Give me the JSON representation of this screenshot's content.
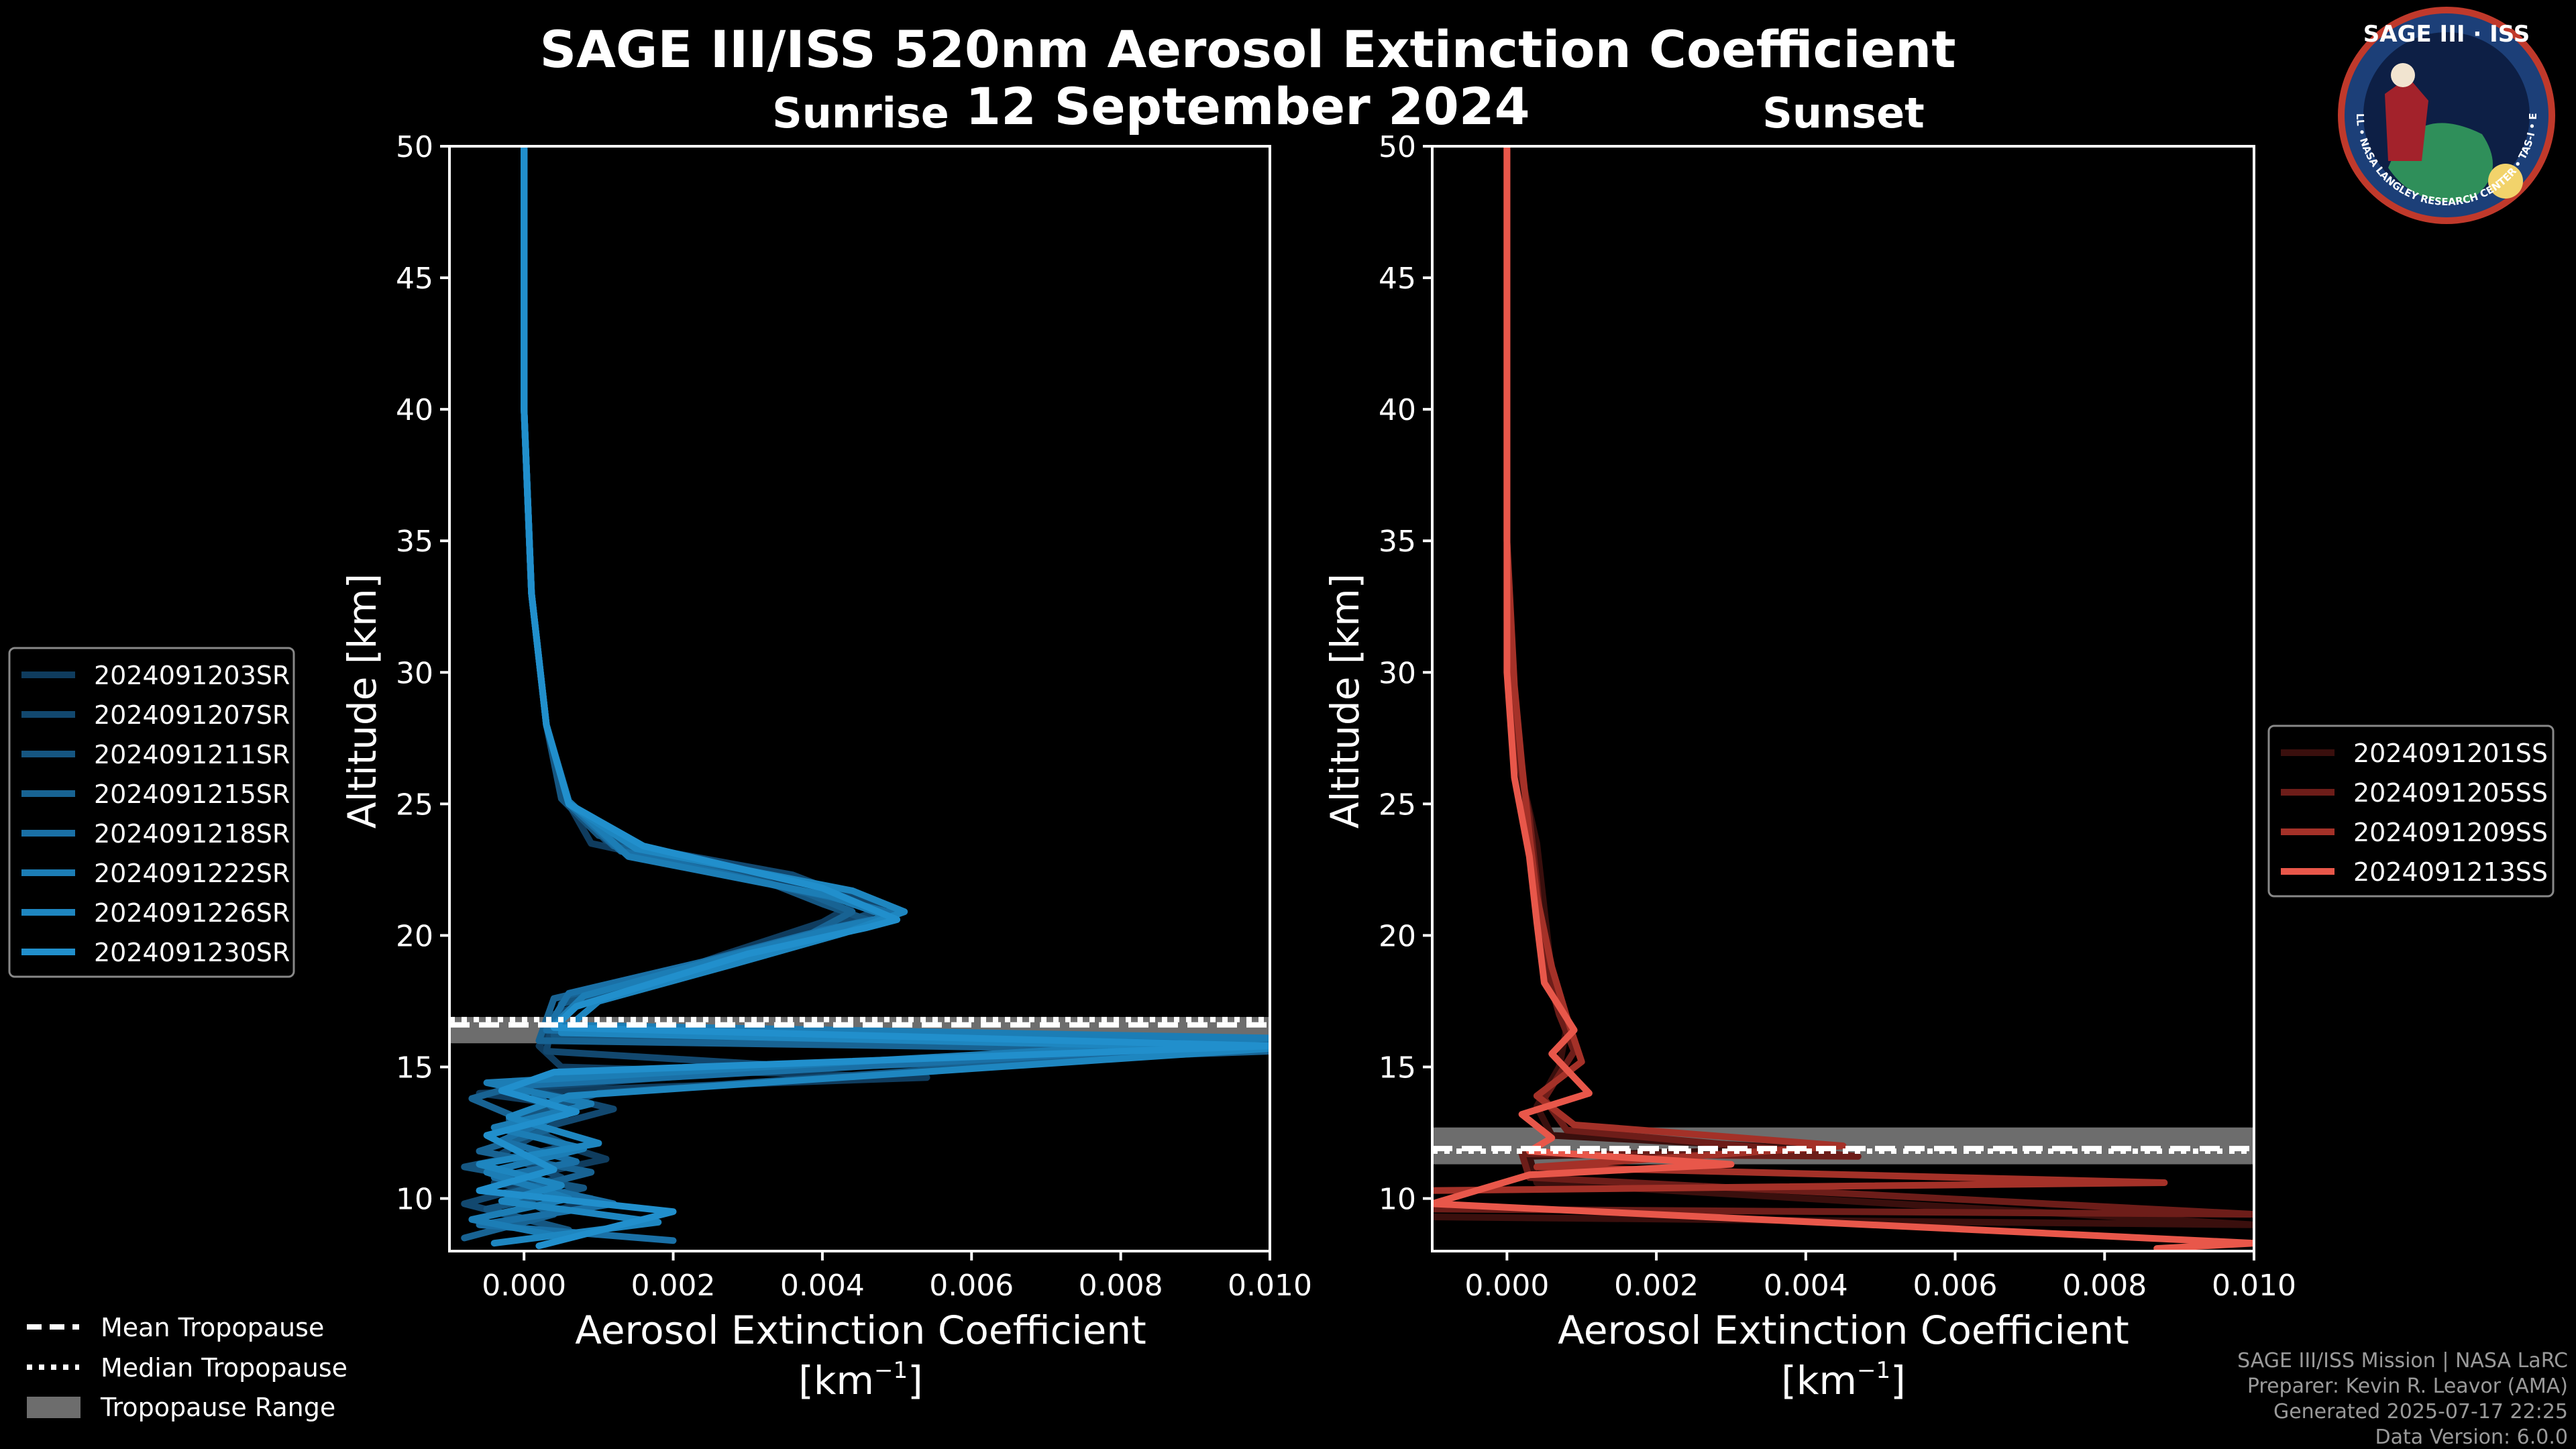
{
  "title": "SAGE III/ISS 520nm Aerosol Extinction Coefficient",
  "date": "12 September 2024",
  "logo": {
    "text": "SAGE III · ISS",
    "ring_text": "BALL • NASA LANGLEY RESEARCH CENTER • TAS-I • ESA"
  },
  "legend_tropopause": [
    "Mean Tropopause",
    "Median Tropopause",
    "Tropopause Range"
  ],
  "credits": [
    "SAGE III/ISS Mission | NASA LaRC",
    "Preparer: Kevin R. Leavor (AMA)",
    "Generated 2025-07-17 22:25",
    "Data Version: 6.0.0"
  ],
  "colors": {
    "sunrise": "#1f8ac6",
    "sunset": "#e8574a",
    "background": "#000000",
    "tropopause_band": "#808080"
  },
  "chart_data": [
    {
      "type": "line",
      "panel": "sunrise",
      "title": "Sunrise",
      "xlabel": "Aerosol Extinction Coefficient",
      "xunit": "[km",
      "xunit_sup": "−1",
      "xunit_end": "]",
      "ylabel": "Altitude [km]",
      "xlim": [
        -0.001,
        0.01
      ],
      "ylim": [
        8,
        50
      ],
      "xticks": [
        "0.000",
        "0.002",
        "0.004",
        "0.006",
        "0.008",
        "0.010"
      ],
      "yticks": [
        "10",
        "15",
        "20",
        "25",
        "30",
        "35",
        "40",
        "45",
        "50"
      ],
      "tropopause": {
        "mean": 16.6,
        "median": 16.8,
        "range": [
          15.9,
          16.9
        ]
      },
      "series": [
        {
          "name": "2024091203SR",
          "color": "#0f3c5e",
          "points": [
            [
              0.0001,
              9.2
            ],
            [
              0.0009,
              10.0
            ],
            [
              -0.0004,
              10.6
            ],
            [
              0.0011,
              11.5
            ],
            [
              0.0002,
              12.3
            ],
            [
              0.0007,
              13.5
            ],
            [
              -0.0006,
              14.0
            ],
            [
              0.0054,
              14.6
            ],
            [
              0.0005,
              15.0
            ],
            [
              0.0002,
              15.8
            ],
            [
              0.0006,
              17.2
            ],
            [
              0.0014,
              18.0
            ],
            [
              0.0026,
              19.2
            ],
            [
              0.004,
              20.5
            ],
            [
              0.0045,
              21.3
            ],
            [
              0.003,
              22.2
            ],
            [
              0.0009,
              23.5
            ],
            [
              0.0006,
              25.0
            ],
            [
              0.0003,
              28.0
            ],
            [
              0.0001,
              33.0
            ],
            [
              0.0,
              40.0
            ],
            [
              0.0,
              50.0
            ]
          ]
        },
        {
          "name": "2024091207SR",
          "color": "#12486f",
          "points": [
            [
              0.0003,
              9.0
            ],
            [
              -0.0008,
              9.8
            ],
            [
              0.0005,
              10.8
            ],
            [
              -0.0003,
              11.7
            ],
            [
              0.0004,
              12.8
            ],
            [
              0.0012,
              13.4
            ],
            [
              0.0,
              14.2
            ],
            [
              0.0038,
              15.0
            ],
            [
              0.0003,
              15.6
            ],
            [
              0.0004,
              17.0
            ],
            [
              0.0017,
              18.3
            ],
            [
              0.0032,
              19.5
            ],
            [
              0.0042,
              20.4
            ],
            [
              0.0048,
              21.0
            ],
            [
              0.0036,
              22.3
            ],
            [
              0.0011,
              23.6
            ],
            [
              0.0006,
              25.0
            ],
            [
              0.0003,
              28.0
            ],
            [
              0.0001,
              33.0
            ],
            [
              0.0,
              40.0
            ],
            [
              0.0,
              50.0
            ]
          ]
        },
        {
          "name": "2024091211SR",
          "color": "#155681",
          "points": [
            [
              0.0006,
              8.8
            ],
            [
              -0.0005,
              9.6
            ],
            [
              0.0008,
              10.4
            ],
            [
              -0.0008,
              11.2
            ],
            [
              0.0006,
              12.0
            ],
            [
              -0.0002,
              13.0
            ],
            [
              0.001,
              14.0
            ],
            [
              0.01,
              15.8
            ],
            [
              0.0004,
              16.2
            ],
            [
              0.0005,
              17.4
            ],
            [
              0.002,
              18.6
            ],
            [
              0.0036,
              19.8
            ],
            [
              0.0046,
              20.6
            ],
            [
              0.004,
              21.2
            ],
            [
              0.0032,
              22.1
            ],
            [
              0.001,
              23.8
            ],
            [
              0.0005,
              25.2
            ],
            [
              0.0003,
              28.0
            ],
            [
              0.0001,
              33.0
            ],
            [
              0.0,
              40.0
            ],
            [
              0.0,
              50.0
            ]
          ]
        },
        {
          "name": "2024091215SR",
          "color": "#186393",
          "points": [
            [
              -0.0008,
              8.5
            ],
            [
              0.0004,
              9.4
            ],
            [
              -0.0002,
              10.2
            ],
            [
              0.0009,
              11.0
            ],
            [
              -0.0006,
              11.8
            ],
            [
              0.0003,
              12.6
            ],
            [
              -0.0007,
              13.8
            ],
            [
              0.0003,
              14.6
            ],
            [
              0.01,
              15.6
            ],
            [
              0.0002,
              16.0
            ],
            [
              0.0004,
              17.6
            ],
            [
              0.0022,
              18.8
            ],
            [
              0.0038,
              20.0
            ],
            [
              0.0044,
              20.9
            ],
            [
              0.0038,
              21.6
            ],
            [
              0.0012,
              23.4
            ],
            [
              0.0006,
              25.0
            ],
            [
              0.0003,
              28.0
            ],
            [
              0.0001,
              33.0
            ],
            [
              0.0,
              40.0
            ],
            [
              0.0,
              50.0
            ]
          ]
        },
        {
          "name": "2024091218SR",
          "color": "#1a70a6",
          "points": [
            [
              0.002,
              8.4
            ],
            [
              -0.0006,
              9.0
            ],
            [
              0.0012,
              9.8
            ],
            [
              -0.0004,
              10.8
            ],
            [
              0.0007,
              11.4
            ],
            [
              -0.0003,
              12.2
            ],
            [
              0.0005,
              13.2
            ],
            [
              0.0,
              14.3
            ],
            [
              0.01,
              15.9
            ],
            [
              0.0003,
              16.4
            ],
            [
              0.0006,
              17.8
            ],
            [
              0.0024,
              19.0
            ],
            [
              0.004,
              20.2
            ],
            [
              0.005,
              20.8
            ],
            [
              0.0042,
              21.4
            ],
            [
              0.0013,
              23.2
            ],
            [
              0.0006,
              25.0
            ],
            [
              0.0003,
              28.0
            ],
            [
              0.0001,
              33.0
            ],
            [
              0.0,
              40.0
            ],
            [
              0.0,
              50.0
            ]
          ]
        },
        {
          "name": "2024091222SR",
          "color": "#1c7db5",
          "points": [
            [
              0.0004,
              8.6
            ],
            [
              -0.0007,
              9.2
            ],
            [
              0.0006,
              10.0
            ],
            [
              -0.0005,
              11.0
            ],
            [
              0.0008,
              11.9
            ],
            [
              -0.0004,
              12.7
            ],
            [
              0.0009,
              13.6
            ],
            [
              -0.0005,
              14.4
            ],
            [
              0.01,
              16.1
            ],
            [
              0.0004,
              16.6
            ],
            [
              0.0008,
              17.7
            ],
            [
              0.0026,
              19.1
            ],
            [
              0.0042,
              20.3
            ],
            [
              0.0049,
              20.7
            ],
            [
              0.0041,
              21.5
            ],
            [
              0.0014,
              23.0
            ],
            [
              0.0006,
              25.1
            ],
            [
              0.0003,
              28.0
            ],
            [
              0.0001,
              33.0
            ],
            [
              0.0,
              40.0
            ],
            [
              0.0,
              50.0
            ]
          ]
        },
        {
          "name": "2024091226SR",
          "color": "#1e86c0",
          "points": [
            [
              -0.0004,
              8.3
            ],
            [
              0.0018,
              9.1
            ],
            [
              -0.0003,
              9.9
            ],
            [
              0.0005,
              10.5
            ],
            [
              -0.0006,
              11.3
            ],
            [
              0.001,
              12.1
            ],
            [
              -0.0002,
              13.1
            ],
            [
              0.0006,
              13.9
            ],
            [
              0.01,
              15.7
            ],
            [
              0.0005,
              16.3
            ],
            [
              0.001,
              17.5
            ],
            [
              0.0028,
              18.9
            ],
            [
              0.0043,
              20.1
            ],
            [
              0.0051,
              20.9
            ],
            [
              0.0044,
              21.7
            ],
            [
              0.0015,
              23.3
            ],
            [
              0.0006,
              25.0
            ],
            [
              0.0003,
              28.0
            ],
            [
              0.0001,
              33.0
            ],
            [
              0.0,
              40.0
            ],
            [
              0.0,
              50.0
            ]
          ]
        },
        {
          "name": "2024091230SR",
          "color": "#218fcc",
          "points": [
            [
              0.0002,
              8.2
            ],
            [
              0.002,
              9.5
            ],
            [
              -0.0006,
              10.3
            ],
            [
              0.0004,
              11.1
            ],
            [
              -0.0005,
              12.4
            ],
            [
              0.0007,
              13.3
            ],
            [
              -0.0003,
              14.1
            ],
            [
              0.0004,
              14.8
            ],
            [
              0.01,
              15.8
            ],
            [
              0.0004,
              16.5
            ],
            [
              0.0007,
              17.3
            ],
            [
              0.003,
              19.3
            ],
            [
              0.0046,
              20.3
            ],
            [
              0.005,
              20.6
            ],
            [
              0.004,
              21.8
            ],
            [
              0.0016,
              23.4
            ],
            [
              0.0006,
              25.0
            ],
            [
              0.0003,
              28.0
            ],
            [
              0.0001,
              33.0
            ],
            [
              0.0,
              40.0
            ],
            [
              0.0,
              50.0
            ]
          ]
        }
      ]
    },
    {
      "type": "line",
      "panel": "sunset",
      "title": "Sunset",
      "xlabel": "Aerosol Extinction Coefficient",
      "xunit": "[km",
      "xunit_sup": "−1",
      "xunit_end": "]",
      "ylabel": "Altitude [km]",
      "xlim": [
        -0.001,
        0.01
      ],
      "ylim": [
        8,
        50
      ],
      "xticks": [
        "0.000",
        "0.002",
        "0.004",
        "0.006",
        "0.008",
        "0.010"
      ],
      "yticks": [
        "10",
        "15",
        "20",
        "25",
        "30",
        "35",
        "40",
        "45",
        "50"
      ],
      "tropopause": {
        "mean": 11.9,
        "median": 11.8,
        "range": [
          11.3,
          12.7
        ]
      },
      "series": [
        {
          "name": "2024091201SS",
          "color": "#3a0f0d",
          "points": [
            [
              -0.001,
              9.3
            ],
            [
              0.01,
              9.0
            ],
            [
              0.0004,
              10.6
            ],
            [
              0.0003,
              11.6
            ],
            [
              0.004,
              11.9
            ],
            [
              0.0006,
              12.4
            ],
            [
              0.0004,
              13.5
            ],
            [
              0.0007,
              15.0
            ],
            [
              0.0008,
              16.5
            ],
            [
              0.0006,
              18.5
            ],
            [
              0.0005,
              21.0
            ],
            [
              0.0004,
              23.5
            ],
            [
              0.0002,
              26.0
            ],
            [
              0.0001,
              29.0
            ],
            [
              0.0,
              35.0
            ],
            [
              0.0,
              50.0
            ]
          ]
        },
        {
          "name": "2024091205SS",
          "color": "#6d1d19",
          "points": [
            [
              -0.001,
              9.6
            ],
            [
              0.01,
              9.4
            ],
            [
              0.0003,
              10.8
            ],
            [
              0.0002,
              11.7
            ],
            [
              0.0047,
              11.6
            ],
            [
              0.0008,
              12.6
            ],
            [
              0.0005,
              13.8
            ],
            [
              0.0009,
              15.6
            ],
            [
              0.0007,
              17.0
            ],
            [
              0.0005,
              19.0
            ],
            [
              0.0004,
              22.0
            ],
            [
              0.0003,
              24.5
            ],
            [
              0.0001,
              27.5
            ],
            [
              0.0,
              32.0
            ],
            [
              0.0,
              50.0
            ]
          ]
        },
        {
          "name": "2024091209SS",
          "color": "#a43128",
          "points": [
            [
              -0.001,
              10.3
            ],
            [
              0.0088,
              10.6
            ],
            [
              0.0004,
              11.2
            ],
            [
              0.0045,
              12.0
            ],
            [
              0.0009,
              12.8
            ],
            [
              0.0004,
              13.9
            ],
            [
              0.001,
              15.2
            ],
            [
              0.0008,
              16.9
            ],
            [
              0.0006,
              18.8
            ],
            [
              0.0004,
              21.5
            ],
            [
              0.0003,
              23.8
            ],
            [
              0.0002,
              26.5
            ],
            [
              0.0001,
              29.5
            ],
            [
              0.0,
              35.0
            ],
            [
              0.0,
              50.0
            ]
          ]
        },
        {
          "name": "2024091213SS",
          "color": "#e8574a",
          "points": [
            [
              0.0087,
              8.1
            ],
            [
              0.01,
              8.3
            ],
            [
              -0.001,
              9.8
            ],
            [
              0.0003,
              10.9
            ],
            [
              0.003,
              11.3
            ],
            [
              0.0003,
              11.8
            ],
            [
              0.0006,
              12.3
            ],
            [
              0.0002,
              13.2
            ],
            [
              0.0011,
              14.0
            ],
            [
              0.0006,
              15.5
            ],
            [
              0.0009,
              16.4
            ],
            [
              0.0005,
              18.2
            ],
            [
              0.0004,
              20.5
            ],
            [
              0.0003,
              23.0
            ],
            [
              0.0001,
              26.0
            ],
            [
              0.0,
              30.0
            ],
            [
              0.0,
              50.0
            ]
          ]
        }
      ]
    }
  ]
}
